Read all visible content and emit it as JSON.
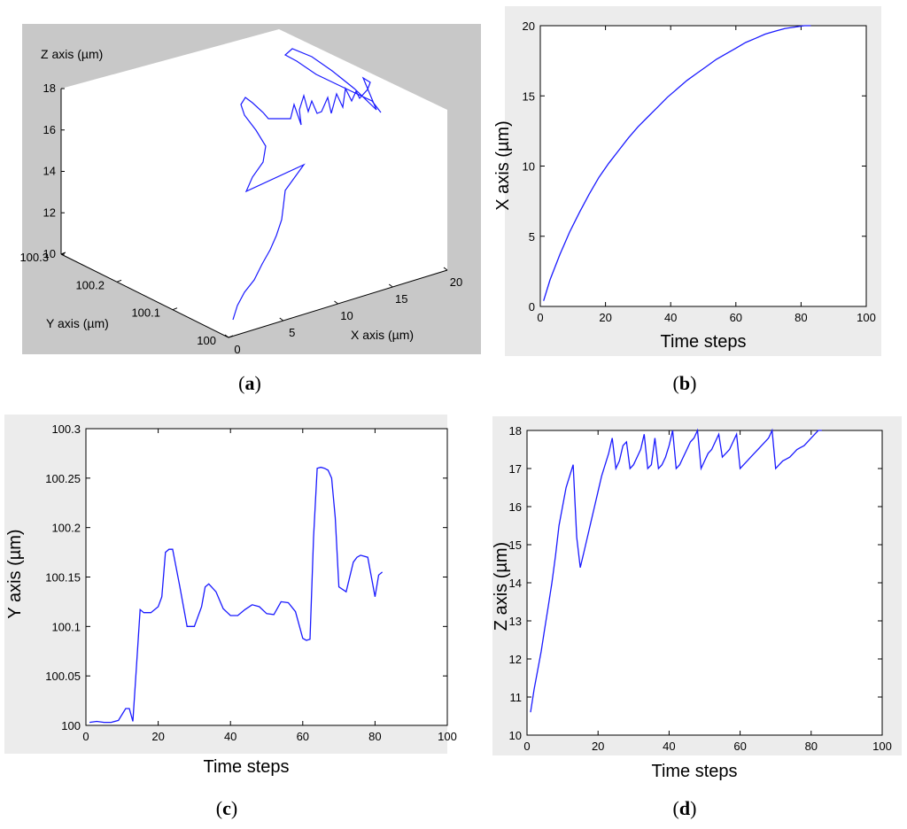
{
  "chart_data": [
    {
      "panel": "a",
      "type": "line3d",
      "caption": "a",
      "xlabel": "X axis (µm)",
      "ylabel": "Y axis (µm)",
      "zlabel": "Z axis (µm)",
      "xticks": [
        "0",
        "5",
        "10",
        "15",
        "20"
      ],
      "yticks": [
        "100",
        "100.1",
        "100.2",
        "100.3"
      ],
      "zticks": [
        "10",
        "12",
        "14",
        "16",
        "18"
      ],
      "xlim": [
        0,
        20
      ],
      "ylim": [
        100,
        100.3
      ],
      "zlim": [
        10,
        18
      ],
      "colors": {
        "line": "#1a1aff",
        "background": "#c8c8c8",
        "box": "#ffffff"
      }
    },
    {
      "panel": "b",
      "type": "line",
      "caption": "b",
      "xlabel": "Time steps",
      "ylabel": "X axis (µm)",
      "xlim": [
        0,
        100
      ],
      "ylim": [
        0,
        20
      ],
      "xticks": [
        "0",
        "20",
        "40",
        "60",
        "80",
        "100"
      ],
      "yticks": [
        "0",
        "5",
        "10",
        "15",
        "20"
      ],
      "series": [
        {
          "x": [
            1,
            3,
            6,
            9,
            12,
            15,
            18,
            21,
            24,
            27,
            30,
            33,
            36,
            39,
            42,
            45,
            48,
            51,
            54,
            57,
            60,
            63,
            66,
            69,
            72,
            75,
            78,
            81,
            83
          ],
          "y": [
            0.4,
            1.9,
            3.7,
            5.3,
            6.7,
            8.0,
            9.2,
            10.2,
            11.1,
            12.0,
            12.8,
            13.5,
            14.2,
            14.9,
            15.5,
            16.1,
            16.6,
            17.1,
            17.6,
            18.0,
            18.4,
            18.8,
            19.1,
            19.4,
            19.6,
            19.8,
            19.9,
            20.0,
            20.0
          ]
        }
      ],
      "colors": {
        "line": "#1a1aff"
      }
    },
    {
      "panel": "c",
      "type": "line",
      "caption": "c",
      "xlabel": "Time steps",
      "ylabel": "Y axis (µm)",
      "xlim": [
        0,
        100
      ],
      "ylim": [
        100,
        100.3
      ],
      "xticks": [
        "0",
        "20",
        "40",
        "60",
        "80",
        "100"
      ],
      "yticks": [
        "100",
        "100.05",
        "100.1",
        "100.15",
        "100.2",
        "100.25",
        "100.3"
      ],
      "series": [
        {
          "x": [
            1,
            3,
            5,
            7,
            9,
            11,
            12,
            13,
            14,
            15,
            16,
            18,
            20,
            21,
            22,
            23,
            24,
            26,
            28,
            30,
            32,
            33,
            34,
            36,
            38,
            40,
            42,
            44,
            46,
            48,
            50,
            52,
            54,
            56,
            58,
            60,
            61,
            62,
            63,
            64,
            65,
            66,
            67,
            68,
            69,
            70,
            72,
            74,
            75,
            76,
            78,
            79,
            80,
            81,
            82
          ],
          "y": [
            100.003,
            100.004,
            100.003,
            100.003,
            100.005,
            100.017,
            100.017,
            100.004,
            100.06,
            100.117,
            100.114,
            100.114,
            100.12,
            100.13,
            100.175,
            100.178,
            100.178,
            100.14,
            100.1,
            100.1,
            100.12,
            100.14,
            100.143,
            100.135,
            100.118,
            100.111,
            100.111,
            100.117,
            100.122,
            100.12,
            100.113,
            100.112,
            100.125,
            100.124,
            100.115,
            100.088,
            100.086,
            100.087,
            100.19,
            100.26,
            100.261,
            100.26,
            100.258,
            100.25,
            100.21,
            100.14,
            100.135,
            100.165,
            100.17,
            100.172,
            100.17,
            100.15,
            100.13,
            100.152,
            100.155
          ]
        }
      ],
      "colors": {
        "line": "#1a1aff"
      }
    },
    {
      "panel": "d",
      "type": "line",
      "caption": "d",
      "xlabel": "Time steps",
      "ylabel": "Z axis (µm)",
      "xlim": [
        0,
        100
      ],
      "ylim": [
        10,
        18
      ],
      "xticks": [
        "0",
        "20",
        "40",
        "60",
        "80",
        "100"
      ],
      "yticks": [
        "10",
        "11",
        "12",
        "13",
        "14",
        "15",
        "16",
        "17",
        "18"
      ],
      "series": [
        {
          "x": [
            1,
            2,
            3,
            4,
            5,
            6,
            7,
            8,
            9,
            10,
            11,
            12,
            13,
            14,
            15,
            16,
            17,
            18,
            19,
            20,
            21,
            22,
            23,
            24,
            25,
            26,
            27,
            28,
            29,
            30,
            31,
            32,
            33,
            34,
            35,
            36,
            37,
            38,
            39,
            40,
            41,
            42,
            43,
            44,
            45,
            46,
            47,
            48,
            49,
            50,
            51,
            52,
            53,
            54,
            55,
            56,
            57,
            58,
            59,
            60,
            61,
            62,
            63,
            64,
            65,
            66,
            67,
            68,
            69,
            70,
            71,
            72,
            73,
            74,
            75,
            76,
            77,
            78,
            79,
            80,
            81,
            82,
            83
          ],
          "y": [
            10.6,
            11.2,
            11.7,
            12.2,
            12.8,
            13.4,
            14.0,
            14.7,
            15.5,
            16.0,
            16.5,
            16.8,
            17.1,
            15.2,
            14.4,
            14.8,
            15.2,
            15.6,
            16.0,
            16.4,
            16.8,
            17.1,
            17.4,
            17.8,
            17.0,
            17.2,
            17.6,
            17.7,
            17.0,
            17.1,
            17.3,
            17.5,
            17.9,
            17.0,
            17.1,
            17.8,
            17.0,
            17.1,
            17.3,
            17.6,
            18.0,
            17.0,
            17.1,
            17.3,
            17.5,
            17.7,
            17.8,
            18.0,
            17.0,
            17.2,
            17.4,
            17.5,
            17.7,
            17.9,
            17.3,
            17.4,
            17.5,
            17.7,
            17.9,
            17.0,
            17.1,
            17.2,
            17.3,
            17.4,
            17.5,
            17.6,
            17.7,
            17.8,
            18.0,
            17.0,
            17.1,
            17.2,
            17.25,
            17.3,
            17.4,
            17.5,
            17.55,
            17.6,
            17.7,
            17.8,
            17.9,
            18.0,
            18.0
          ]
        }
      ],
      "colors": {
        "line": "#1a1aff"
      }
    }
  ]
}
